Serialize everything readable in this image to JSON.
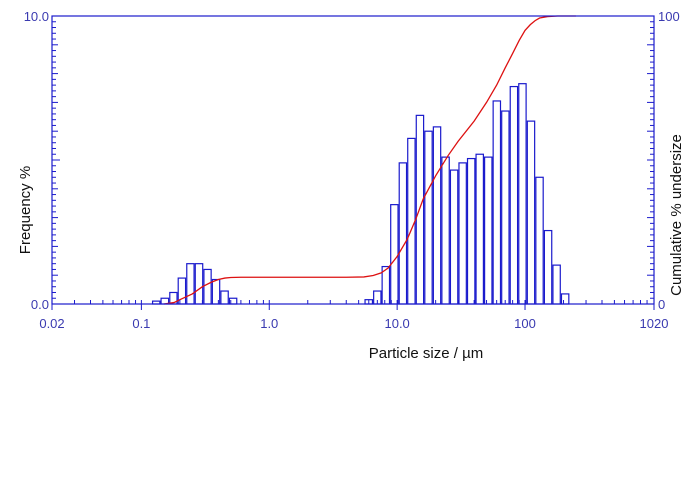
{
  "chart_data": {
    "type": "bar",
    "title": "",
    "xlabel": "Particle size / µm",
    "ylabel_left": "Frequency %",
    "ylabel_right": "Cumulative % undersize",
    "x_scale": "log",
    "xlim": [
      0.02,
      1020
    ],
    "ylim_left": [
      0,
      10
    ],
    "ylim_right": [
      0,
      100
    ],
    "x_ticks": [
      0.02,
      0.1,
      1.0,
      10.0,
      100,
      1020
    ],
    "x_tick_labels": [
      "0.02",
      "0.1",
      "1.0",
      "10.0",
      "100",
      "1020"
    ],
    "y_left_tick_labels": [
      "0.0",
      "10.0"
    ],
    "y_right_tick_labels": [
      "0",
      "100"
    ],
    "grid": false,
    "series": [
      {
        "kind": "histogram",
        "bins": [
          {
            "x0": 0.121,
            "x1": 0.141,
            "value": 0.1
          },
          {
            "x0": 0.141,
            "x1": 0.165,
            "value": 0.2
          },
          {
            "x0": 0.165,
            "x1": 0.192,
            "value": 0.4
          },
          {
            "x0": 0.192,
            "x1": 0.224,
            "value": 0.9
          },
          {
            "x0": 0.224,
            "x1": 0.261,
            "value": 1.4
          },
          {
            "x0": 0.261,
            "x1": 0.305,
            "value": 1.4
          },
          {
            "x0": 0.305,
            "x1": 0.355,
            "value": 1.2
          },
          {
            "x0": 0.355,
            "x1": 0.414,
            "value": 0.85
          },
          {
            "x0": 0.414,
            "x1": 0.483,
            "value": 0.45
          },
          {
            "x0": 0.483,
            "x1": 0.563,
            "value": 0.2
          },
          {
            "x0": 5.55,
            "x1": 6.48,
            "value": 0.15
          },
          {
            "x0": 6.48,
            "x1": 7.55,
            "value": 0.45
          },
          {
            "x0": 7.55,
            "x1": 8.81,
            "value": 1.3
          },
          {
            "x0": 8.81,
            "x1": 10.27,
            "value": 3.45
          },
          {
            "x0": 10.27,
            "x1": 11.97,
            "value": 4.9
          },
          {
            "x0": 11.97,
            "x1": 13.96,
            "value": 5.75
          },
          {
            "x0": 13.96,
            "x1": 16.28,
            "value": 6.55
          },
          {
            "x0": 16.28,
            "x1": 18.99,
            "value": 6.0
          },
          {
            "x0": 18.99,
            "x1": 22.14,
            "value": 6.15
          },
          {
            "x0": 22.14,
            "x1": 25.83,
            "value": 5.1
          },
          {
            "x0": 25.83,
            "x1": 30.12,
            "value": 4.65
          },
          {
            "x0": 30.12,
            "x1": 35.13,
            "value": 4.9
          },
          {
            "x0": 35.13,
            "x1": 40.97,
            "value": 5.05
          },
          {
            "x0": 40.97,
            "x1": 47.78,
            "value": 5.2
          },
          {
            "x0": 47.78,
            "x1": 55.73,
            "value": 5.1
          },
          {
            "x0": 55.73,
            "x1": 64.99,
            "value": 7.05
          },
          {
            "x0": 64.99,
            "x1": 75.79,
            "value": 6.7
          },
          {
            "x0": 75.79,
            "x1": 88.4,
            "value": 7.55
          },
          {
            "x0": 88.4,
            "x1": 103.09,
            "value": 7.65
          },
          {
            "x0": 103.09,
            "x1": 120.23,
            "value": 6.35
          },
          {
            "x0": 120.23,
            "x1": 140.22,
            "value": 4.4
          },
          {
            "x0": 140.22,
            "x1": 163.53,
            "value": 2.55
          },
          {
            "x0": 163.53,
            "x1": 190.72,
            "value": 1.35
          },
          {
            "x0": 190.72,
            "x1": 222.44,
            "value": 0.35
          }
        ],
        "color": "#1a1acc"
      },
      {
        "kind": "cumulative-line",
        "x": [
          0.15,
          0.18,
          0.2,
          0.25,
          0.3,
          0.35,
          0.4,
          0.45,
          0.5,
          0.6,
          1,
          2,
          4,
          5.5,
          6.5,
          7.5,
          8.5,
          10,
          12,
          14,
          16,
          20,
          25,
          30,
          40,
          50,
          60,
          70,
          80,
          90,
          100,
          110,
          120,
          130,
          150,
          180,
          200,
          250
        ],
        "y": [
          0,
          0.5,
          1.5,
          3.5,
          6,
          7.5,
          8.5,
          9.0,
          9.2,
          9.3,
          9.3,
          9.3,
          9.3,
          9.4,
          9.9,
          10.8,
          12.5,
          16.5,
          22.5,
          29.5,
          36.5,
          44.5,
          51.5,
          56.5,
          63.5,
          70,
          76,
          82,
          87,
          91.5,
          95,
          97,
          98.4,
          99.3,
          99.8,
          100,
          100,
          100
        ],
        "color": "#dd1111"
      }
    ]
  }
}
